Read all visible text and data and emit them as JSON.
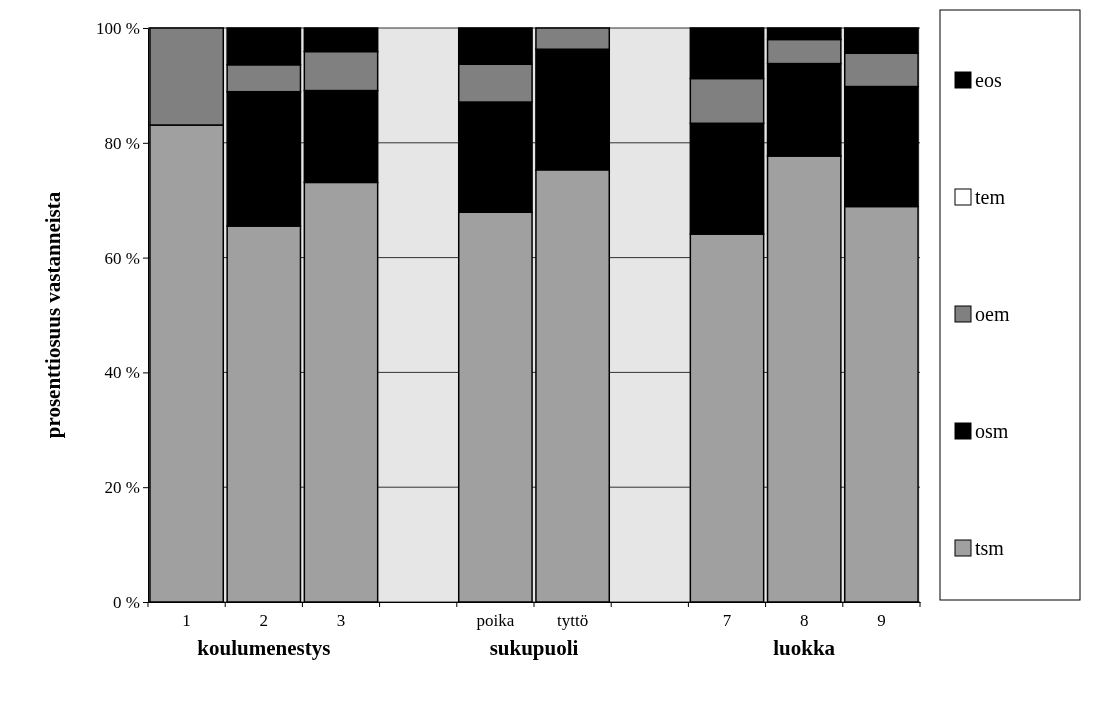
{
  "chart_data": {
    "type": "bar",
    "stacked": true,
    "ylabel": "prosenttiosuus vastanneista",
    "categories": [
      "1",
      "2",
      "3",
      null,
      "poika",
      "tyttö",
      null,
      "7",
      "8",
      "9"
    ],
    "series": [
      {
        "name": "tsm",
        "color": "#a0a0a0",
        "values": [
          83.1,
          65.5,
          73.1,
          null,
          67.9,
          75.3,
          null,
          64.1,
          77.7,
          68.9
        ]
      },
      {
        "name": "osm",
        "color": "#000000",
        "values": [
          0,
          23.4,
          16,
          null,
          19.2,
          21,
          null,
          19.3,
          16.1,
          20.9
        ]
      },
      {
        "name": "oem",
        "color": "#808080",
        "values": [
          16.9,
          4.7,
          6.8,
          null,
          6.6,
          3.7,
          null,
          7.8,
          4.2,
          5.8
        ]
      },
      {
        "name": "tem",
        "color": "#ffffff",
        "values": [
          0,
          0,
          0,
          null,
          0,
          0,
          null,
          0,
          0,
          0
        ]
      },
      {
        "name": "eos",
        "color": "#000000",
        "values": [
          0,
          6.4,
          4.1,
          null,
          6.3,
          0,
          null,
          8.8,
          2,
          4.4
        ]
      }
    ],
    "ylim": [
      0,
      100
    ],
    "yticks": [
      {
        "value": 0,
        "label": "0 %"
      },
      {
        "value": 20,
        "label": "20 %"
      },
      {
        "value": 40,
        "label": "40 %"
      },
      {
        "value": 60,
        "label": "60 %"
      },
      {
        "value": 80,
        "label": "80 %"
      },
      {
        "value": 100,
        "label": "100 %"
      }
    ],
    "grid": "y",
    "legend": "right",
    "annotations": [
      "koulumenestys",
      "sukupuoli",
      "luokka"
    ]
  }
}
